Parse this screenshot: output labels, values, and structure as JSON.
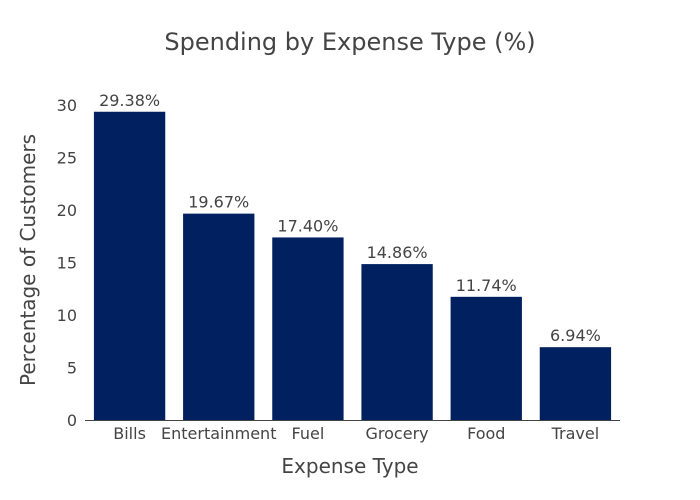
{
  "chart_data": {
    "type": "bar",
    "title": "Spending by Expense Type (%)",
    "xlabel": "Expense Type",
    "ylabel": "Percentage of Customers",
    "categories": [
      "Bills",
      "Entertainment",
      "Fuel",
      "Grocery",
      "Food",
      "Travel"
    ],
    "values": [
      29.38,
      19.67,
      17.4,
      14.86,
      11.74,
      6.94
    ],
    "data_labels": [
      "29.38%",
      "19.67%",
      "17.40%",
      "14.86%",
      "11.74%",
      "6.94%"
    ],
    "ylim": [
      0,
      30.5
    ],
    "yticks": [
      0,
      5,
      10,
      15,
      20,
      25,
      30
    ],
    "grid": false,
    "bar_color": "#002060"
  }
}
